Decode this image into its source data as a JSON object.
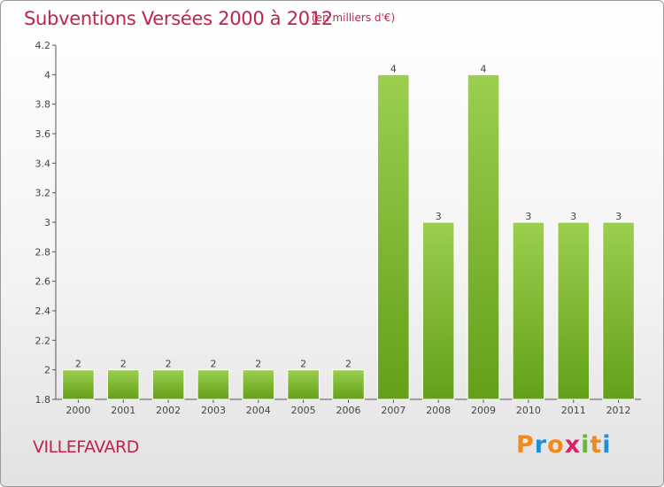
{
  "chart_data": {
    "type": "bar",
    "title": "Subventions Versées 2000 à 2012",
    "subtitle": "(en milliers d'€)",
    "categories": [
      "2000",
      "2001",
      "2002",
      "2003",
      "2004",
      "2005",
      "2006",
      "2007",
      "2008",
      "2009",
      "2010",
      "2011",
      "2012"
    ],
    "values": [
      2,
      2,
      2,
      2,
      2,
      2,
      2,
      4,
      3,
      4,
      3,
      3,
      3
    ],
    "data_labels": [
      "2",
      "2",
      "2",
      "2",
      "2",
      "2",
      "2",
      "4",
      "3",
      "4",
      "3",
      "3",
      "3"
    ],
    "ylim": [
      1.8,
      4.2
    ],
    "yticks": [
      1.8,
      2,
      2.2,
      2.4,
      2.6,
      2.8,
      3,
      3.2,
      3.4,
      3.6,
      3.8,
      4,
      4.2
    ],
    "ytick_labels": [
      "1.8",
      "2",
      "2.2",
      "2.4",
      "2.6",
      "2.8",
      "3",
      "3.2",
      "3.4",
      "3.6",
      "3.8",
      "4",
      "4.2"
    ],
    "xlabel": "",
    "ylabel": "",
    "grid": false,
    "legend": "none",
    "bar_color_top": "#9ccf4f",
    "bar_color_bottom": "#63a018"
  },
  "footer": {
    "commune": "VILLEFAVARD",
    "logo_letters": [
      "P",
      "r",
      "o",
      "x",
      "i",
      "t",
      "i"
    ],
    "logo_colors": [
      "#f08a1c",
      "#1e8fd6",
      "#f08a1c",
      "#d6246b",
      "#6cb33f",
      "#f08a1c",
      "#1e8fd6"
    ]
  },
  "colors": {
    "title": "#c0234c",
    "axis": "#555555"
  }
}
